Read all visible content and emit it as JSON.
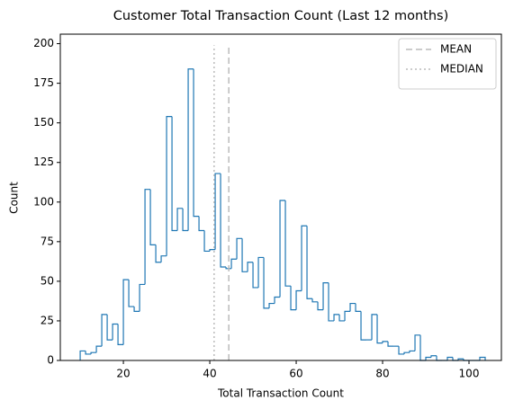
{
  "chart_data": {
    "type": "histogram",
    "title": "Customer Total Transaction Count (Last 12 months)",
    "x_label": "Total Transaction Count",
    "y_label": "Count",
    "color": "#1f77b4",
    "bins": [
      10,
      11.25,
      12.5,
      13.75,
      15,
      16.25,
      17.5,
      18.75,
      20,
      21.25,
      22.5,
      23.75,
      25,
      26.25,
      27.5,
      28.75,
      30,
      31.25,
      32.5,
      33.75,
      35,
      36.25,
      37.5,
      38.75,
      40,
      41.25,
      42.5,
      43.75,
      45,
      46.25,
      47.5,
      48.75,
      50,
      51.25,
      52.5,
      53.75,
      55,
      56.25,
      57.5,
      58.75,
      60,
      61.25,
      62.5,
      63.75,
      65,
      66.25,
      67.5,
      68.75,
      70,
      71.25,
      72.5,
      73.75,
      75,
      76.25,
      77.5,
      78.75,
      80,
      81.25,
      82.5,
      83.75,
      85,
      86.25,
      87.5,
      88.75,
      90,
      91.25,
      92.5,
      93.75,
      95,
      96.25,
      97.5,
      98.75,
      100,
      101.25,
      102.5,
      103.75
    ],
    "counts": [
      6,
      4,
      5,
      9,
      29,
      13,
      23,
      10,
      51,
      34,
      31,
      48,
      108,
      73,
      62,
      66,
      154,
      82,
      96,
      82,
      184,
      91,
      82,
      69,
      70,
      118,
      59,
      58,
      64,
      77,
      56,
      62,
      46,
      65,
      33,
      36,
      40,
      101,
      47,
      32,
      44,
      85,
      39,
      37,
      32,
      49,
      25,
      29,
      25,
      31,
      36,
      31,
      13,
      13,
      29,
      11,
      12,
      9,
      9,
      4,
      5,
      6,
      16,
      0,
      2,
      3,
      0,
      0,
      2,
      0,
      1,
      0,
      0,
      0,
      2
    ],
    "lines": [
      {
        "name": "MEAN",
        "x": 44.4,
        "ymax": 199,
        "style": "dashed",
        "color": "#bbbbbb"
      },
      {
        "name": "MEDIAN",
        "x": 41,
        "ymax": 199,
        "style": "dotted",
        "color": "#bbbbbb"
      }
    ],
    "xlim": [
      5.4,
      107.5
    ],
    "ylim": [
      0,
      206
    ],
    "xticks": [
      20,
      40,
      60,
      80,
      100
    ],
    "yticks": [
      0,
      25,
      50,
      75,
      100,
      125,
      150,
      175,
      200
    ],
    "legend": "upper right"
  }
}
